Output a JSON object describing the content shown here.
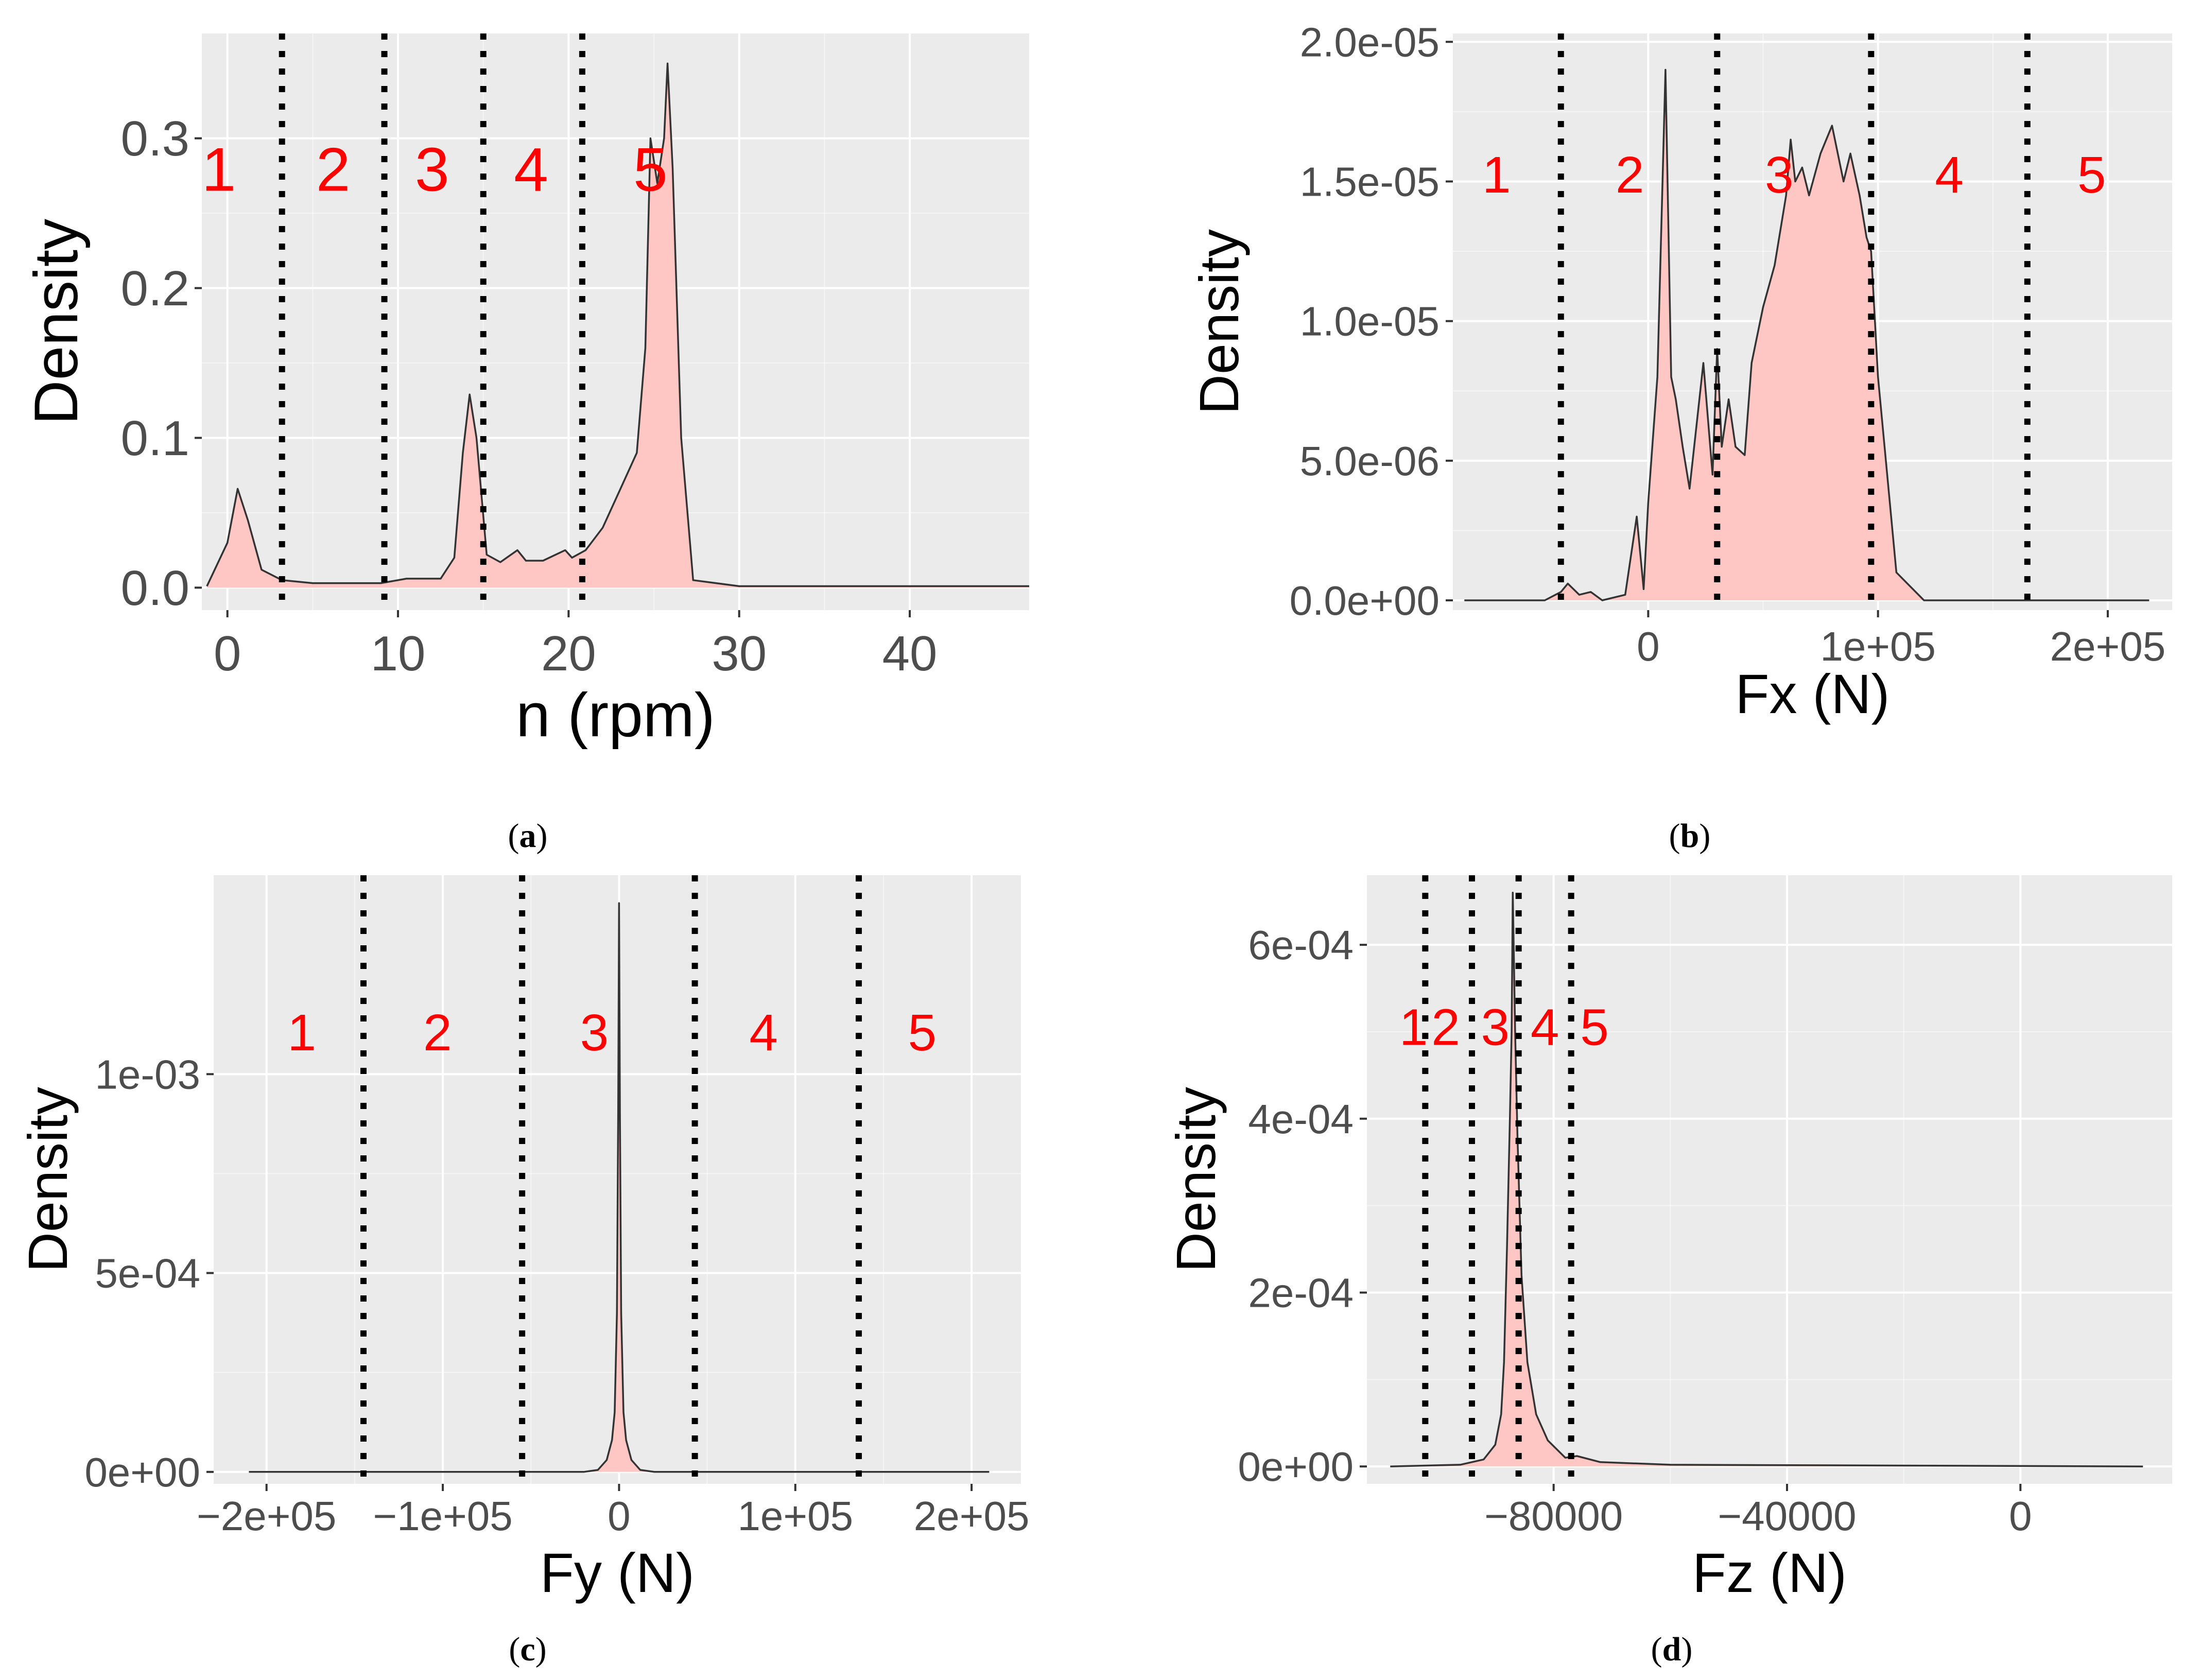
{
  "colors": {
    "panel_bg": "#ebebeb",
    "grid_major": "#ffffff",
    "fill": "#ffc7c4",
    "line": "#333333",
    "region_label": "#ff0000",
    "cut_line": "#000000"
  },
  "chart_data": [
    {
      "type": "area",
      "caption": "(a)",
      "caption_letter": "a",
      "title": "",
      "xlabel": "n (rpm)",
      "ylabel": "Density",
      "xlim": [
        -1.5,
        47
      ],
      "ylim": [
        -0.015,
        0.37
      ],
      "xticks": [
        0,
        10,
        20,
        30,
        40
      ],
      "xtick_labels": [
        "0",
        "10",
        "20",
        "30",
        "40"
      ],
      "yticks": [
        0,
        0.1,
        0.2,
        0.3
      ],
      "ytick_labels": [
        "0.0",
        "0.1",
        "0.2",
        "0.3"
      ],
      "cut_points": [
        3.2,
        9.2,
        15,
        20.8
      ],
      "region_labels": [
        "1",
        "2",
        "3",
        "4",
        "5"
      ],
      "region_label_x": [
        -0.5,
        6.2,
        12.0,
        17.8,
        24.8
      ],
      "region_label_y": 0.265,
      "x": [
        -1.2,
        0,
        0.6,
        1.2,
        2,
        3.2,
        5,
        9,
        10.5,
        12.5,
        13.3,
        13.8,
        14.2,
        14.6,
        15.2,
        16,
        17,
        17.5,
        18.5,
        19.8,
        20.2,
        21,
        22,
        23,
        24,
        24.5,
        24.8,
        25.2,
        25.6,
        25.8,
        26.1,
        26.6,
        27.3,
        30,
        47
      ],
      "y": [
        0.001,
        0.03,
        0.066,
        0.045,
        0.012,
        0.005,
        0.003,
        0.003,
        0.006,
        0.006,
        0.02,
        0.09,
        0.129,
        0.1,
        0.022,
        0.017,
        0.025,
        0.018,
        0.018,
        0.025,
        0.02,
        0.025,
        0.04,
        0.065,
        0.09,
        0.16,
        0.3,
        0.27,
        0.3,
        0.35,
        0.28,
        0.1,
        0.005,
        0.001,
        0.001
      ]
    },
    {
      "type": "area",
      "caption": "(b)",
      "caption_letter": "b",
      "title": "",
      "xlabel": "Fx (N)",
      "ylabel": "Density",
      "xlim": [
        -85000,
        228000
      ],
      "ylim": [
        -3.5e-07,
        2.03e-05
      ],
      "xticks": [
        0,
        100000,
        200000
      ],
      "xtick_labels": [
        "0",
        "1e+05",
        "2e+05"
      ],
      "yticks": [
        0,
        5e-06,
        1e-05,
        1.5e-05,
        2e-05
      ],
      "ytick_labels": [
        "0.0e+00",
        "5.0e-06",
        "1.0e-05",
        "1.5e-05",
        "2.0e-05"
      ],
      "cut_points": [
        -38000,
        30000,
        97000,
        165000
      ],
      "region_labels": [
        "1",
        "2",
        "3",
        "4",
        "5"
      ],
      "region_label_x": [
        -66000,
        -8000,
        57000,
        131000,
        193000
      ],
      "region_label_y": 1.46e-05,
      "x": [
        -80000,
        -45000,
        -38000,
        -35000,
        -30000,
        -25000,
        -20000,
        -10000,
        -5000,
        -2000,
        0,
        4000,
        7500,
        10000,
        12000,
        15000,
        18000,
        24000,
        28000,
        30000,
        32000,
        35000,
        38000,
        42000,
        45000,
        50000,
        55000,
        60000,
        62000,
        64000,
        67000,
        70000,
        75000,
        80000,
        85000,
        88000,
        92000,
        95000,
        97000,
        100000,
        108000,
        120000,
        150000,
        218000
      ],
      "y": [
        0,
        0,
        3e-07,
        6e-07,
        2e-07,
        3e-07,
        0,
        2e-07,
        3e-06,
        4e-07,
        3.5e-06,
        8e-06,
        1.9e-05,
        8e-06,
        7.2e-06,
        5.5e-06,
        4e-06,
        8.5e-06,
        4.5e-06,
        9e-06,
        5.5e-06,
        7.2e-06,
        5.5e-06,
        5.2e-06,
        8.5e-06,
        1.05e-05,
        1.2e-05,
        1.45e-05,
        1.65e-05,
        1.5e-05,
        1.55e-05,
        1.45e-05,
        1.6e-05,
        1.7e-05,
        1.5e-05,
        1.6e-05,
        1.45e-05,
        1.3e-05,
        1.25e-05,
        8e-06,
        1e-06,
        0,
        0,
        0
      ]
    },
    {
      "type": "area",
      "caption": "(c)",
      "caption_letter": "c",
      "title": "",
      "xlabel": "Fy (N)",
      "ylabel": "Density",
      "xlim": [
        -230000,
        228000
      ],
      "ylim": [
        -3e-05,
        0.0015
      ],
      "xticks": [
        -200000,
        -100000,
        0,
        100000,
        200000
      ],
      "xtick_labels": [
        "-2e+05",
        "-1e+05",
        "0",
        "1e+05",
        "2e+05"
      ],
      "yticks": [
        0,
        0.0005,
        0.001
      ],
      "ytick_labels": [
        "0e+00",
        "5e-04",
        "1e-03"
      ],
      "cut_points": [
        -145000,
        -55000,
        43000,
        136000
      ],
      "region_labels": [
        "1",
        "2",
        "3",
        "4",
        "5"
      ],
      "region_label_x": [
        -180000,
        -103000,
        -14000,
        82000,
        172000
      ],
      "region_label_y": 0.00106,
      "x": [
        -210000,
        -20000,
        -12000,
        -7000,
        -4000,
        -2500,
        -1200,
        -500,
        0,
        500,
        1200,
        2500,
        4000,
        7000,
        12000,
        20000,
        210000
      ],
      "y": [
        0,
        0,
        5e-06,
        3e-05,
        8e-05,
        0.00015,
        0.0004,
        0.0009,
        0.00143,
        0.0009,
        0.0004,
        0.00015,
        8e-05,
        3e-05,
        5e-06,
        0,
        0
      ]
    },
    {
      "type": "area",
      "caption": "(d)",
      "caption_letter": "d",
      "title": "",
      "xlabel": "Fz (N)",
      "ylabel": "Density",
      "xlim": [
        -112000,
        26000
      ],
      "ylim": [
        -2e-05,
        0.00068
      ],
      "xticks": [
        -80000,
        -40000,
        0
      ],
      "xtick_labels": [
        "-80000",
        "-40000",
        "0"
      ],
      "yticks": [
        0,
        0.0002,
        0.0004,
        0.0006
      ],
      "ytick_labels": [
        "0e+00",
        "2e-04",
        "4e-04",
        "6e-04"
      ],
      "cut_points": [
        -102000,
        -94000,
        -86000,
        -77000
      ],
      "region_labels": [
        "1",
        "2",
        "3",
        "4",
        "5"
      ],
      "region_label_x": [
        -104000,
        -98500,
        -90000,
        -81500,
        -73000
      ],
      "region_label_y": 0.000485,
      "x": [
        -108000,
        -96000,
        -92000,
        -90000,
        -89000,
        -88500,
        -88000,
        -87500,
        -87200,
        -87000,
        -86600,
        -86200,
        -85500,
        -84500,
        -83000,
        -81000,
        -78000,
        -76000,
        -72000,
        -60000,
        21000
      ],
      "y": [
        0,
        2e-06,
        8e-06,
        2.5e-05,
        6e-05,
        0.00012,
        0.00025,
        0.0004,
        0.0005,
        0.00066,
        0.0005,
        0.00038,
        0.00022,
        0.00012,
        6e-05,
        3e-05,
        1e-05,
        1.2e-05,
        5e-06,
        2e-06,
        0
      ]
    }
  ]
}
